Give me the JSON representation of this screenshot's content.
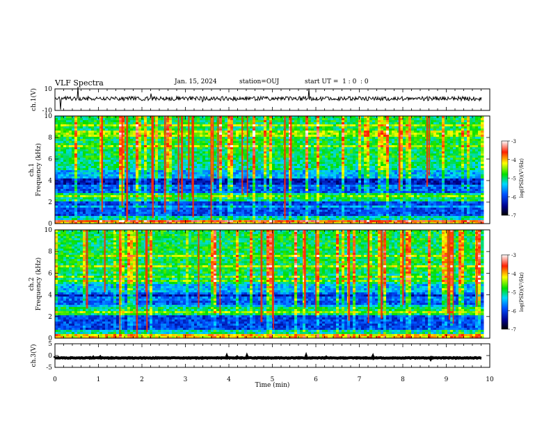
{
  "header": {
    "title": "VLF Spectra",
    "date": "Jan. 15, 2024",
    "station": "station=OUJ",
    "start_ut": "start UT =  1 : 0  : 0"
  },
  "chart_data": [
    {
      "type": "line",
      "panel": "ch1-waveform",
      "ylabel": "ch.1(V)",
      "ylim": [
        -10,
        10
      ],
      "yticks": [
        "10",
        "-10"
      ],
      "xlim": [
        0,
        10
      ],
      "baseline": 1
    },
    {
      "type": "heatmap",
      "panel": "ch1-spectrogram",
      "ylabel_lines": [
        "ch.1",
        "Frequency (kHz)"
      ],
      "ylim": [
        0,
        10
      ],
      "yticks": [
        "0",
        "2",
        "4",
        "6",
        "8",
        "10"
      ],
      "xlim": [
        0,
        9.85
      ],
      "colorbar": {
        "label": "log(PSD)(V²/Hz)",
        "range": [
          -7,
          -3
        ],
        "ticks": [
          "-3",
          "-4",
          "-5",
          "-6",
          "-7"
        ]
      }
    },
    {
      "type": "heatmap",
      "panel": "ch2-spectrogram",
      "ylabel_lines": [
        "ch.2",
        "Frequency (kHz)"
      ],
      "ylim": [
        0,
        10
      ],
      "yticks": [
        "0",
        "2",
        "4",
        "6",
        "8",
        "10"
      ],
      "xlim": [
        0,
        9.85
      ],
      "colorbar": {
        "label": "log(PSD)(V²/Hz)",
        "range": [
          -7,
          -3
        ],
        "ticks": [
          "-3",
          "-4",
          "-5",
          "-6",
          "-7"
        ]
      }
    },
    {
      "type": "line",
      "panel": "ch3-waveform",
      "ylabel": "ch.3(V)",
      "ylim": [
        -5,
        5
      ],
      "yticks": [
        "5",
        "0",
        "-5"
      ],
      "xlim": [
        0,
        10
      ],
      "baseline": -1
    }
  ],
  "x_axis": {
    "label": "Time (min)",
    "ticks": [
      "0",
      "1",
      "2",
      "3",
      "4",
      "5",
      "6",
      "7",
      "8",
      "9",
      "10"
    ]
  },
  "colors": {
    "frame": "#000000",
    "trace": "#000000",
    "background": "#ffffff"
  }
}
